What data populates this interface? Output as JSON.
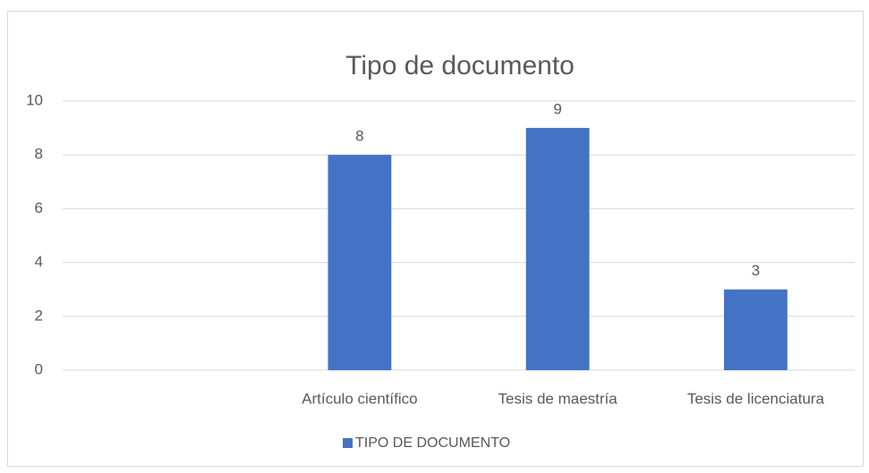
{
  "chart_data": {
    "type": "bar",
    "title": "Tipo de documento",
    "categories": [
      null,
      "Artículo científico",
      "Tesis de maestría",
      "Tesis de licenciatura"
    ],
    "series": [
      {
        "name": "TIPO DE DOCUMENTO",
        "color": "#4472c4",
        "values": [
          null,
          8,
          9,
          3
        ]
      }
    ],
    "ylim": [
      0,
      10
    ],
    "yticks": [
      0,
      2,
      4,
      6,
      8,
      10
    ],
    "grid": true,
    "legend": "bottom"
  }
}
